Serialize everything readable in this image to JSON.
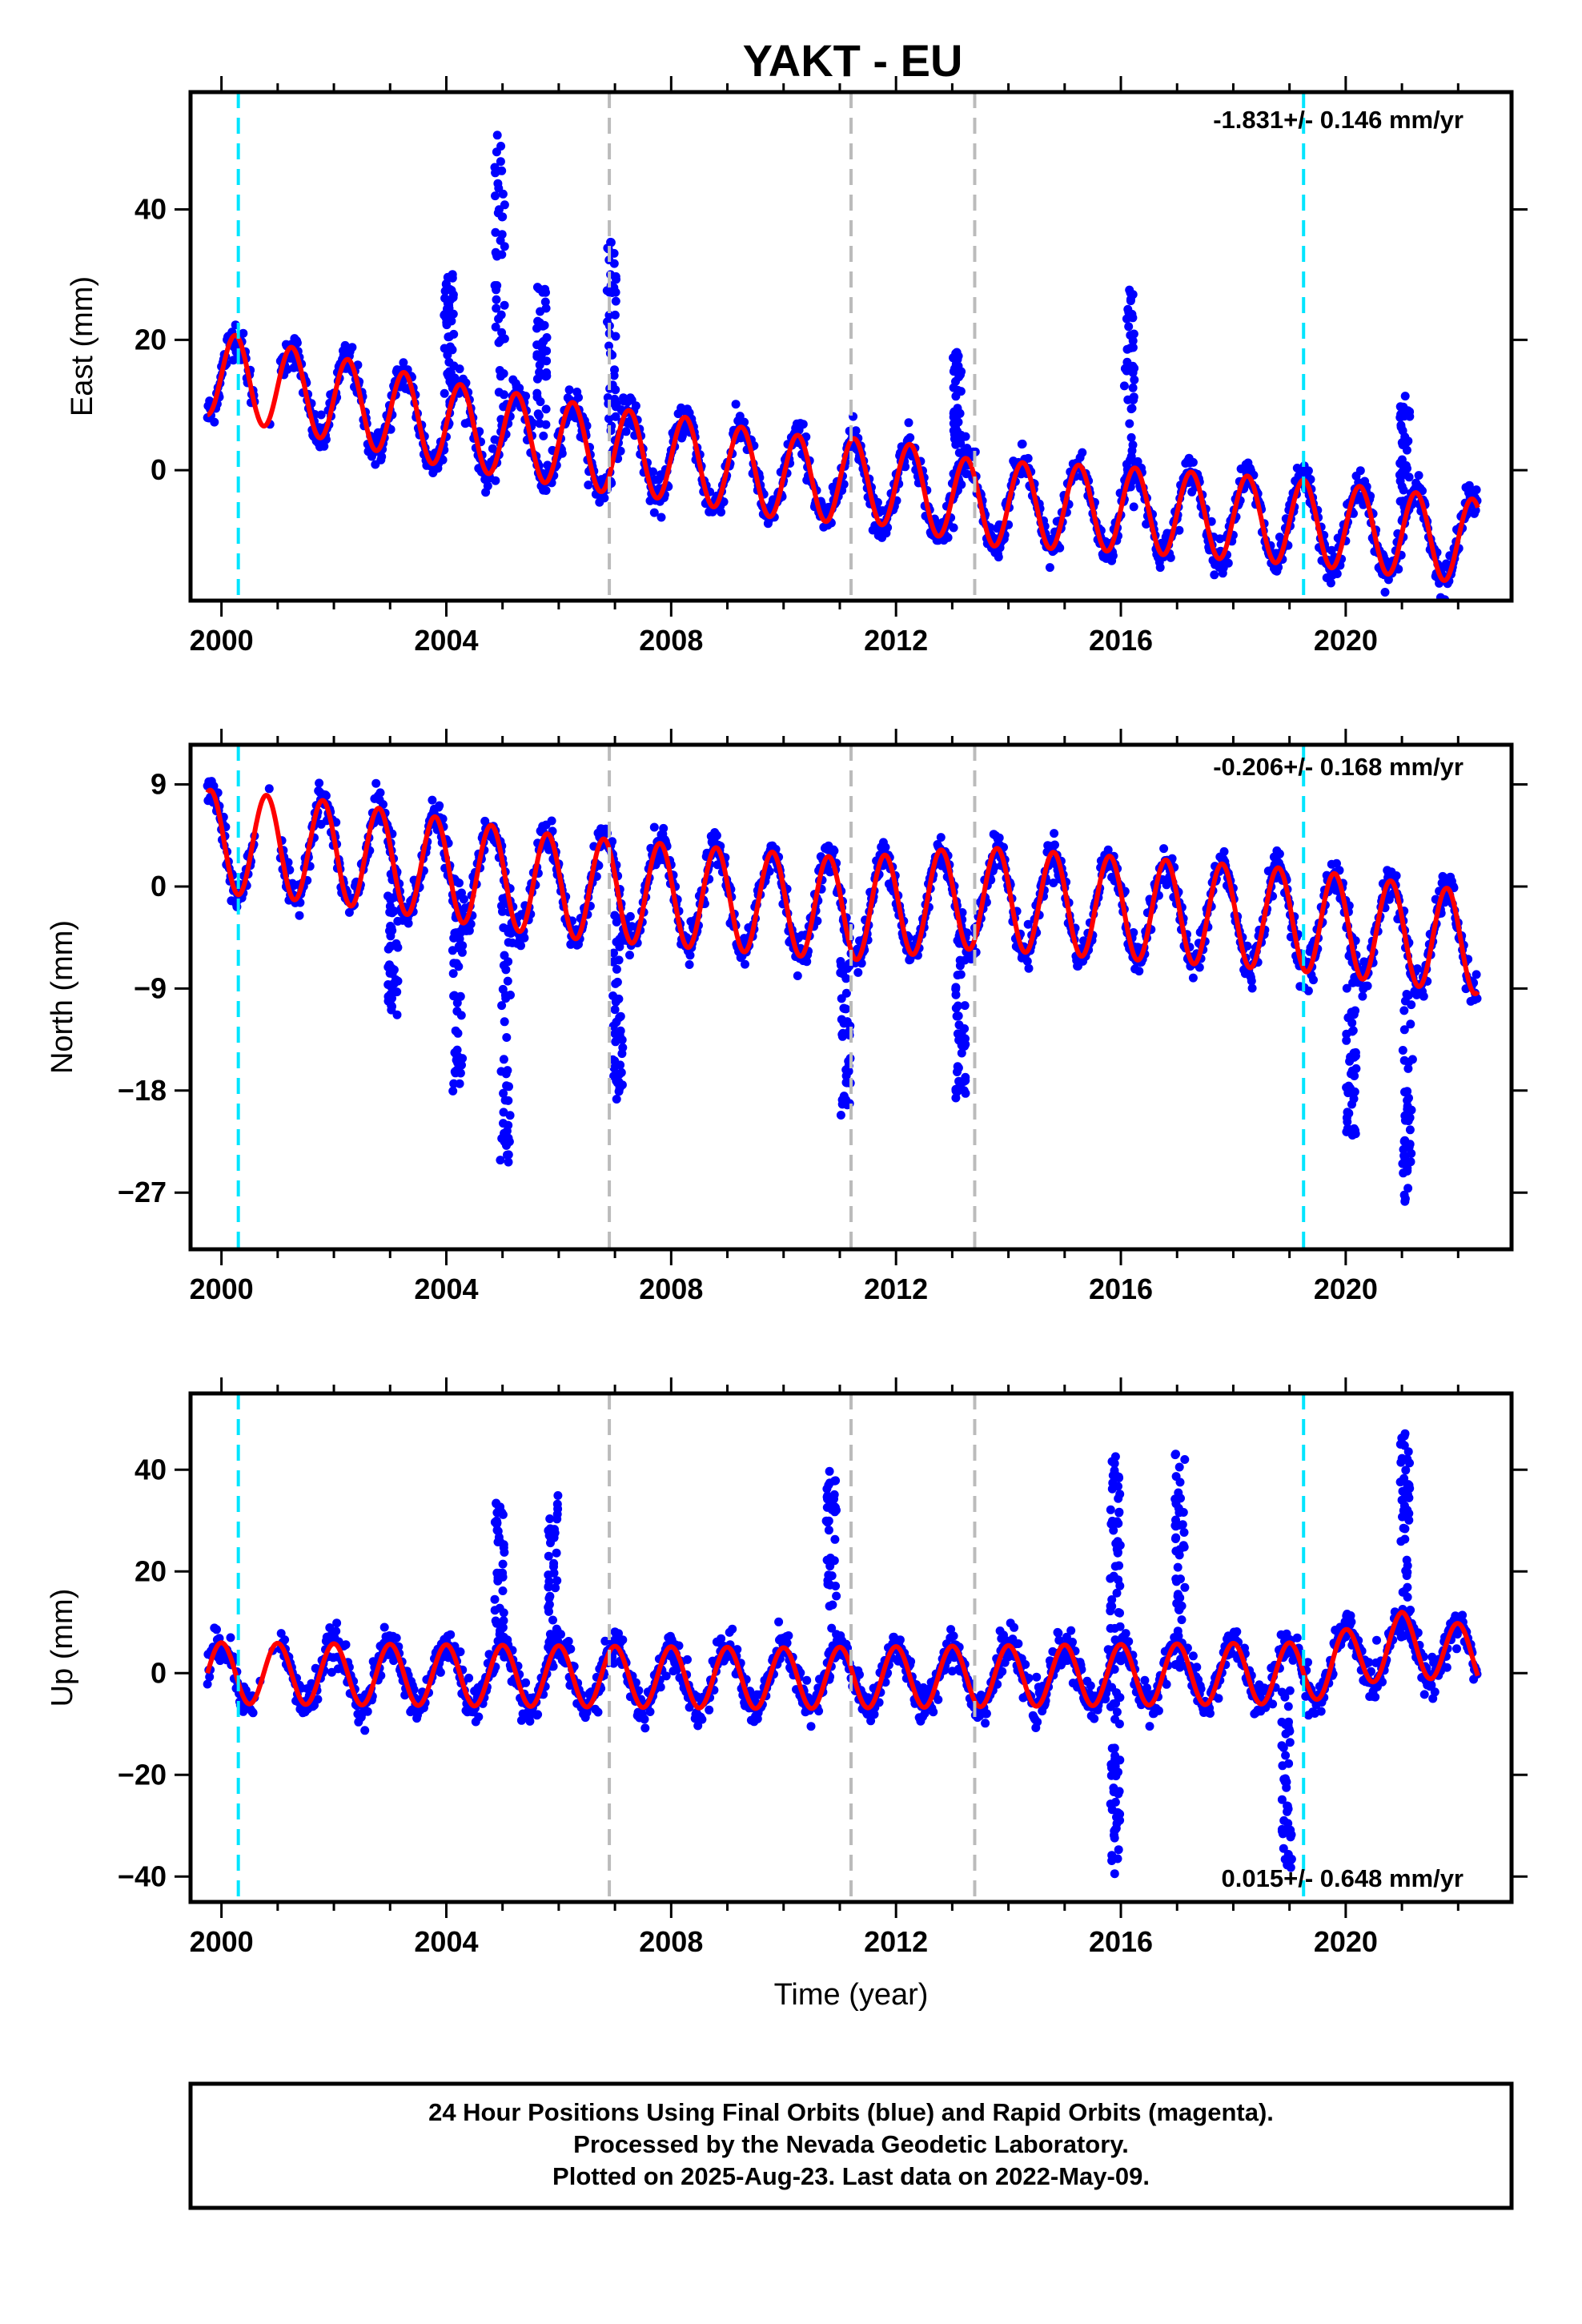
{
  "title": "YAKT - EU",
  "colors": {
    "final_orbits": "#0000ff",
    "model_fit": "#ff0000",
    "marker_cyan": "#00e5ff",
    "marker_gray": "#bbbbbb",
    "frame": "#000000"
  },
  "chart_data": [
    {
      "type": "scatter",
      "component": "east",
      "ylabel": "East (mm)",
      "xlabel": "",
      "rate_text": "-1.831+/- 0.146 mm/yr",
      "xlim": [
        1999.45,
        2022.95
      ],
      "ylim": [
        -20,
        58
      ],
      "x_ticks": [
        2000,
        2004,
        2008,
        2012,
        2016,
        2020
      ],
      "y_ticks": [
        0,
        20,
        40
      ],
      "seasonal_amplitude": 6.5,
      "seasonal_phase_year": 0.0,
      "cyan_lines": [
        2000.3,
        2019.25
      ],
      "gray_lines": [
        2006.9,
        2011.2,
        2013.4
      ],
      "data_span": [
        1999.75,
        2022.35
      ],
      "gap": [
        2000.6,
        2001.05
      ],
      "trend_points": [
        {
          "x": 1999.8,
          "y": 15
        },
        {
          "x": 2002,
          "y": 11
        },
        {
          "x": 2004,
          "y": 7
        },
        {
          "x": 2006.9,
          "y": 3
        },
        {
          "x": 2008,
          "y": 2
        },
        {
          "x": 2010,
          "y": -1
        },
        {
          "x": 2012,
          "y": -2
        },
        {
          "x": 2013.4,
          "y": -5
        },
        {
          "x": 2016,
          "y": -6
        },
        {
          "x": 2019.25,
          "y": -8
        },
        {
          "x": 2022.35,
          "y": -11
        }
      ],
      "outlier_bursts": [
        {
          "x": 2004.05,
          "y": 30
        },
        {
          "x": 2004.95,
          "y": 50
        },
        {
          "x": 2005.7,
          "y": 28
        },
        {
          "x": 2006.95,
          "y": 36
        },
        {
          "x": 2013.1,
          "y": 19
        },
        {
          "x": 2016.15,
          "y": 28
        },
        {
          "x": 2021.05,
          "y": 10
        }
      ]
    },
    {
      "type": "scatter",
      "component": "north",
      "ylabel": "North (mm)",
      "xlabel": "",
      "rate_text": "-0.206+/- 0.168 mm/yr",
      "xlim": [
        1999.45,
        2022.95
      ],
      "ylim": [
        -32,
        12.5
      ],
      "x_ticks": [
        2000,
        2004,
        2008,
        2012,
        2016,
        2020
      ],
      "y_ticks": [
        9,
        0,
        -9,
        -18,
        -27
      ],
      "seasonal_amplitude": 4.5,
      "seasonal_phase_year": 0.55,
      "cyan_lines": [
        2000.3,
        2019.25
      ],
      "gray_lines": [
        2006.9,
        2011.2,
        2013.4
      ],
      "data_span": [
        1999.75,
        2022.35
      ],
      "gap": [
        2000.6,
        2001.05
      ],
      "trend_points": [
        {
          "x": 1999.8,
          "y": 4
        },
        {
          "x": 2002,
          "y": 3
        },
        {
          "x": 2006,
          "y": 0
        },
        {
          "x": 2011.2,
          "y": -2
        },
        {
          "x": 2013.4,
          "y": -1
        },
        {
          "x": 2019.25,
          "y": -3
        },
        {
          "x": 2022.35,
          "y": -5
        }
      ],
      "outlier_bursts": [
        {
          "x": 2003.05,
          "y": -11
        },
        {
          "x": 2004.2,
          "y": -18
        },
        {
          "x": 2005.05,
          "y": -24
        },
        {
          "x": 2007.05,
          "y": -19
        },
        {
          "x": 2011.1,
          "y": -20
        },
        {
          "x": 2013.15,
          "y": -19
        },
        {
          "x": 2020.1,
          "y": -23
        },
        {
          "x": 2021.1,
          "y": -28
        }
      ]
    },
    {
      "type": "scatter",
      "component": "up",
      "ylabel": "Up (mm)",
      "xlabel": "Time (year)",
      "rate_text": "0.015+/- 0.648 mm/yr",
      "xlim": [
        1999.45,
        2022.95
      ],
      "ylim": [
        -45,
        55
      ],
      "x_ticks": [
        2000,
        2004,
        2008,
        2012,
        2016,
        2020
      ],
      "y_ticks": [
        40,
        20,
        0,
        -20,
        -40
      ],
      "seasonal_amplitude": 6,
      "seasonal_phase_year": 0.75,
      "cyan_lines": [
        2000.3,
        2019.25
      ],
      "gray_lines": [
        2006.9,
        2011.2,
        2013.4
      ],
      "data_span": [
        1999.75,
        2022.35
      ],
      "gap": [
        2000.6,
        2001.05
      ],
      "trend_points": [
        {
          "x": 1999.8,
          "y": 0
        },
        {
          "x": 2010,
          "y": -1
        },
        {
          "x": 2019.25,
          "y": 0
        },
        {
          "x": 2021,
          "y": 6
        },
        {
          "x": 2022.35,
          "y": 3
        }
      ],
      "outlier_bursts": [
        {
          "x": 2004.95,
          "y": 33
        },
        {
          "x": 2005.9,
          "y": 35
        },
        {
          "x": 2010.85,
          "y": 38
        },
        {
          "x": 2015.9,
          "y": 42
        },
        {
          "x": 2017.05,
          "y": 43
        },
        {
          "x": 2021.05,
          "y": 48
        },
        {
          "x": 2015.9,
          "y": -40
        },
        {
          "x": 2018.95,
          "y": -38
        }
      ]
    }
  ],
  "footer": {
    "line1": "24 Hour Positions Using Final Orbits (blue) and Rapid Orbits (magenta).",
    "line2": "Processed by the Nevada Geodetic Laboratory.",
    "line3": "Plotted on 2025-Aug-23. Last data on 2022-May-09."
  }
}
